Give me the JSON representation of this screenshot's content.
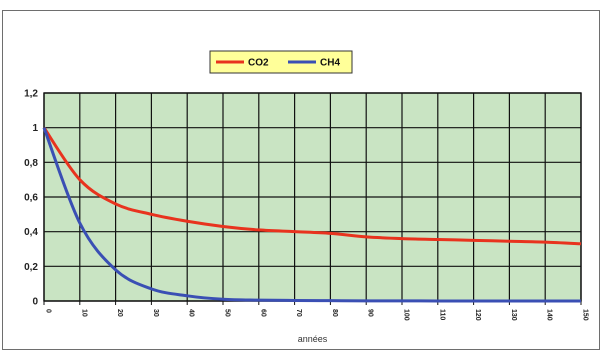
{
  "chart_data": {
    "type": "line",
    "xlabel": "années",
    "ylabel": "",
    "x": [
      0,
      10,
      20,
      30,
      40,
      50,
      60,
      70,
      80,
      90,
      100,
      110,
      120,
      130,
      140,
      150
    ],
    "xlim": [
      0,
      150
    ],
    "ylim": [
      0,
      1.2
    ],
    "y_ticks": [
      "0",
      "0,2",
      "0,4",
      "0,6",
      "0,8",
      "1",
      "1,2"
    ],
    "y_tick_values": [
      0,
      0.2,
      0.4,
      0.6,
      0.8,
      1.0,
      1.2
    ],
    "x_ticks": [
      "0",
      "10",
      "20",
      "30",
      "40",
      "50",
      "60",
      "70",
      "80",
      "90",
      "100",
      "110",
      "120",
      "130",
      "140",
      "150"
    ],
    "grid": true,
    "plot_background": "#c9e4c3",
    "legend": {
      "placement": "top-center",
      "background": "#ffff99"
    },
    "series": [
      {
        "name": "CO2",
        "color": "#e8331e",
        "values": [
          1.0,
          0.7,
          0.56,
          0.5,
          0.46,
          0.43,
          0.41,
          0.4,
          0.39,
          0.37,
          0.36,
          0.355,
          0.35,
          0.345,
          0.34,
          0.33
        ]
      },
      {
        "name": "CH4",
        "color": "#3a4fb4",
        "values": [
          1.0,
          0.45,
          0.18,
          0.07,
          0.03,
          0.01,
          0.005,
          0.003,
          0.002,
          0.001,
          0.001,
          0.0,
          0.0,
          0.0,
          0.0,
          0.0
        ]
      }
    ]
  }
}
